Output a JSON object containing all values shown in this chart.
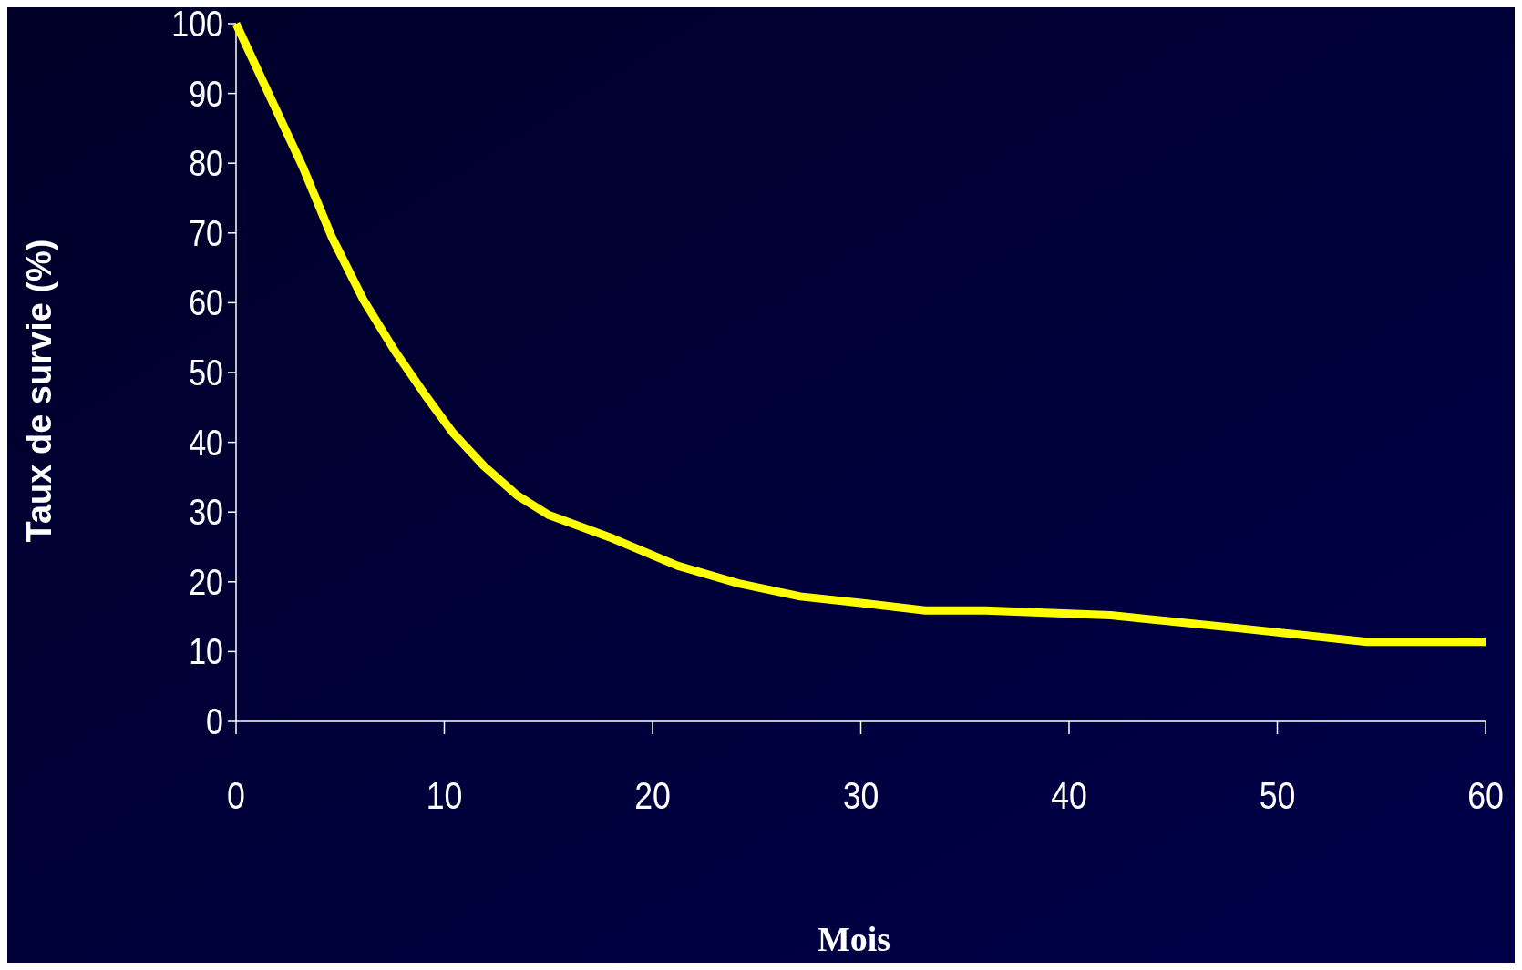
{
  "chart_data": {
    "type": "line",
    "xlabel": "Mois",
    "ylabel": "Taux de survie (%)",
    "x": [
      0,
      3.2,
      4.6,
      6.1,
      7.6,
      9.1,
      10.4,
      11.9,
      13.5,
      15,
      18.1,
      21.2,
      24.1,
      27.1,
      30.2,
      33.1,
      36,
      42,
      48.3,
      54.3,
      60
    ],
    "series": [
      {
        "color": "#ffff00",
        "values": [
          100,
          79.5,
          69.4,
          60.5,
          53.2,
          46.7,
          41.4,
          36.6,
          32.4,
          29.6,
          26.2,
          22.3,
          19.8,
          17.9,
          16.9,
          15.9,
          15.9,
          15.2,
          13.3,
          11.4,
          11.4
        ]
      }
    ],
    "xlim": [
      0,
      60
    ],
    "xticks": [
      0,
      10,
      20,
      30,
      40,
      50,
      60
    ],
    "ylim": [
      0,
      100
    ],
    "yticks": [
      0,
      10,
      20,
      30,
      40,
      50,
      60,
      70,
      80,
      90,
      100
    ],
    "grid": false,
    "marker": "none",
    "line_style": "solid"
  }
}
